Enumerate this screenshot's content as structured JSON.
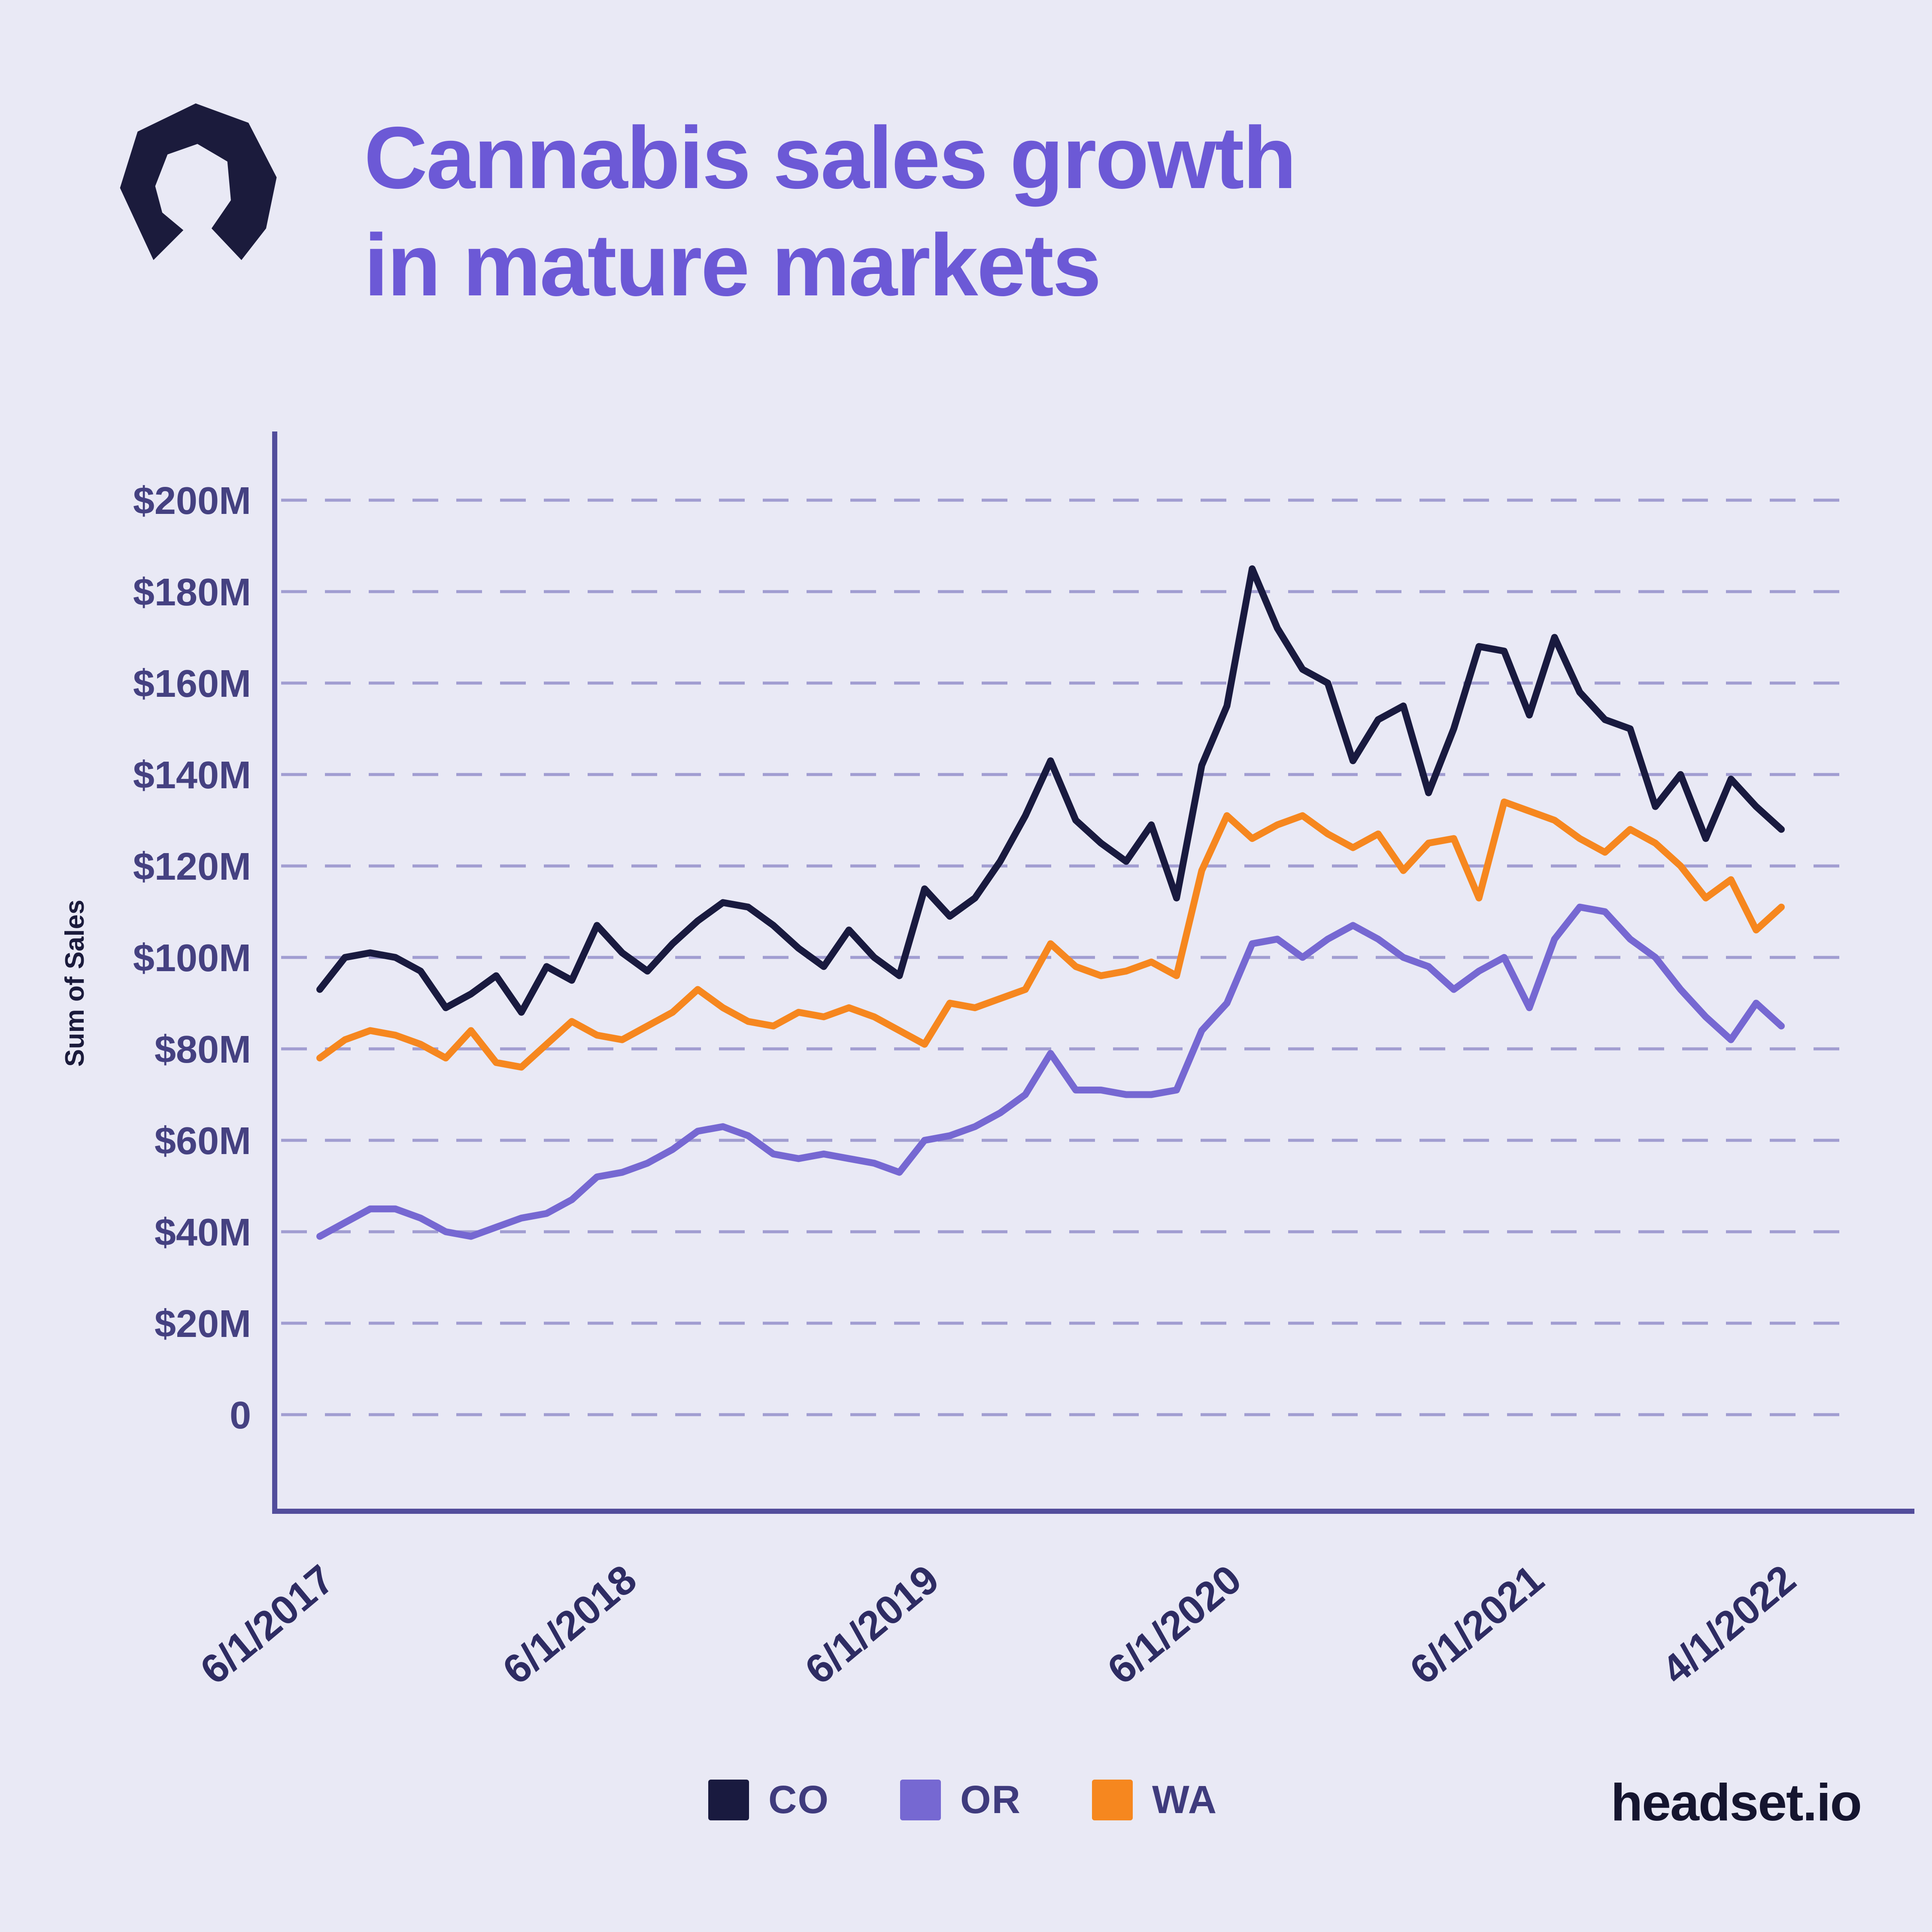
{
  "header": {
    "title_line1": "Cannabis sales growth",
    "title_line2": "in mature markets"
  },
  "brand": {
    "wordmark": "headset.io"
  },
  "colors": {
    "background": "#E9E9F5",
    "title": "#6C59D6",
    "axis": "#524D9B",
    "grid": "#A19DD1"
  },
  "chart_data": {
    "type": "line",
    "title": "Cannabis sales growth in mature markets",
    "ylabel": "Sum of Sales",
    "unit": "$M",
    "ylim": [
      0,
      200
    ],
    "grid": "dashed-horizontal",
    "legend_position": "bottom",
    "n_points": 59,
    "y_ticks": [
      {
        "value": 200,
        "label": "$200M"
      },
      {
        "value": 180,
        "label": "$180M"
      },
      {
        "value": 160,
        "label": "$160M"
      },
      {
        "value": 140,
        "label": "$140M"
      },
      {
        "value": 120,
        "label": "$120M"
      },
      {
        "value": 100,
        "label": "$100M"
      },
      {
        "value": 80,
        "label": "$80M"
      },
      {
        "value": 60,
        "label": "$60M"
      },
      {
        "value": 40,
        "label": "$40M"
      },
      {
        "value": 20,
        "label": "$20M"
      },
      {
        "value": 0,
        "label": "0"
      }
    ],
    "x_ticks": [
      {
        "index": 0,
        "label": "6/1/2017"
      },
      {
        "index": 12,
        "label": "6/1/2018"
      },
      {
        "index": 24,
        "label": "6/1/2019"
      },
      {
        "index": 36,
        "label": "6/1/2020"
      },
      {
        "index": 48,
        "label": "6/1/2021"
      },
      {
        "index": 58,
        "label": "4/1/2022"
      }
    ],
    "series": [
      {
        "name": "CO",
        "color": "#191A3F",
        "values": [
          93,
          100,
          101,
          100,
          97,
          89,
          92,
          96,
          88,
          98,
          95,
          107,
          101,
          97,
          103,
          108,
          112,
          111,
          107,
          102,
          98,
          106,
          100,
          96,
          115,
          109,
          113,
          121,
          131,
          143,
          130,
          125,
          121,
          129,
          113,
          142,
          155,
          185,
          172,
          163,
          160,
          143,
          152,
          155,
          136,
          150,
          168,
          167,
          153,
          170,
          158,
          152,
          150,
          133,
          140,
          126,
          139,
          133,
          128
        ]
      },
      {
        "name": "OR",
        "color": "#7668D2",
        "values": [
          39,
          42,
          45,
          45,
          43,
          40,
          39,
          41,
          43,
          44,
          47,
          52,
          53,
          55,
          58,
          62,
          63,
          61,
          57,
          56,
          57,
          56,
          55,
          53,
          60,
          61,
          63,
          66,
          70,
          79,
          71,
          71,
          70,
          70,
          71,
          84,
          90,
          103,
          104,
          100,
          104,
          107,
          104,
          100,
          98,
          93,
          97,
          100,
          89,
          104,
          111,
          110,
          104,
          100,
          93,
          87,
          82,
          90,
          85
        ]
      },
      {
        "name": "WA",
        "color": "#F6871F",
        "values": [
          78,
          82,
          84,
          83,
          81,
          78,
          84,
          77,
          76,
          81,
          86,
          83,
          82,
          85,
          88,
          93,
          89,
          86,
          85,
          88,
          87,
          89,
          87,
          84,
          81,
          90,
          89,
          91,
          93,
          103,
          98,
          96,
          97,
          99,
          96,
          119,
          131,
          126,
          129,
          131,
          127,
          124,
          127,
          119,
          125,
          126,
          113,
          134,
          132,
          130,
          126,
          123,
          128,
          125,
          120,
          113,
          117,
          106,
          111
        ]
      }
    ]
  }
}
